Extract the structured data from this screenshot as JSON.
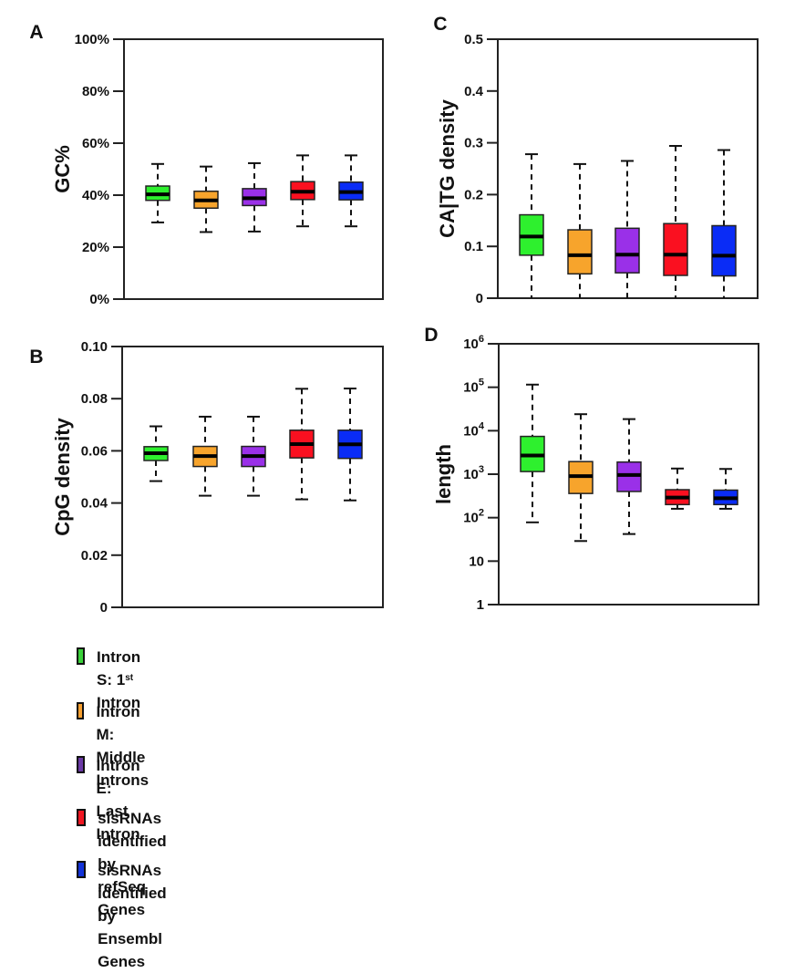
{
  "figure": {
    "legend": [
      {
        "label": "Intron S: 1st Intron",
        "label_main": "Intron S: 1",
        "label_sup": "st",
        "label_tail": " Intron",
        "color": "#3ad13a"
      },
      {
        "label": "Intron M: Middle Introns",
        "label_main": "Intron M: Middle Introns",
        "color": "#f7a030"
      },
      {
        "label": "Intron E: Last Intron",
        "label_main": "Intron E: Last Intron",
        "color": "#6b3aa6"
      },
      {
        "label": "sisRNAs identified by refSeq Genes",
        "label_main": "sisRNAs identified by",
        "label_line2": "refSeq Genes",
        "color": "#f01622"
      },
      {
        "label": "sisRNAs identified by Ensembl Genes",
        "label_main": "sisRNAs identified by",
        "label_line2": "Ensembl Genes",
        "color": "#1232d8"
      }
    ]
  },
  "chart_data": [
    {
      "panel": "A",
      "type": "boxplot",
      "ylabel": "GC%",
      "ylim": [
        0,
        100
      ],
      "yscale": "linear",
      "yticks": [
        0,
        20,
        40,
        60,
        80,
        100
      ],
      "ytick_labels": [
        "0%",
        "20%",
        "40%",
        "60%",
        "80%",
        "100%"
      ],
      "categories": [
        "Intron S",
        "Intron M",
        "Intron E",
        "sisRNA refSeq",
        "sisRNA Ensembl"
      ],
      "colors": [
        "#2ef02e",
        "#f7a42c",
        "#9a30e8",
        "#fa1020",
        "#0a2cf6"
      ],
      "boxes": [
        {
          "whisker_low": 29.5,
          "q1": 38,
          "median": 40.3,
          "q3": 43.5,
          "whisker_high": 52
        },
        {
          "whisker_low": 25.8,
          "q1": 35,
          "median": 38,
          "q3": 41.5,
          "whisker_high": 51
        },
        {
          "whisker_low": 26,
          "q1": 36,
          "median": 38.8,
          "q3": 42.5,
          "whisker_high": 52.3
        },
        {
          "whisker_low": 28,
          "q1": 38.3,
          "median": 41.3,
          "q3": 45.2,
          "whisker_high": 55.3
        },
        {
          "whisker_low": 28,
          "q1": 38.2,
          "median": 41.2,
          "q3": 45,
          "whisker_high": 55.3
        }
      ]
    },
    {
      "panel": "B",
      "type": "boxplot",
      "ylabel": "CpG density",
      "ylim": [
        0,
        0.1
      ],
      "yscale": "linear",
      "yticks": [
        0,
        0.02,
        0.04,
        0.06,
        0.08,
        0.1
      ],
      "ytick_labels": [
        "0",
        "0.02",
        "0.04",
        "0.06",
        "0.08",
        "0.10"
      ],
      "categories": [
        "Intron S",
        "Intron M",
        "Intron E",
        "sisRNA refSeq",
        "sisRNA Ensembl"
      ],
      "colors": [
        "#2ef02e",
        "#f7a42c",
        "#9a30e8",
        "#fa1020",
        "#0a2cf6"
      ],
      "boxes": [
        {
          "whisker_low": 0.0484,
          "q1": 0.0563,
          "median": 0.0591,
          "q3": 0.0616,
          "whisker_high": 0.0694
        },
        {
          "whisker_low": 0.0428,
          "q1": 0.054,
          "median": 0.058,
          "q3": 0.0617,
          "whisker_high": 0.0731
        },
        {
          "whisker_low": 0.0428,
          "q1": 0.054,
          "median": 0.058,
          "q3": 0.0617,
          "whisker_high": 0.0731
        },
        {
          "whisker_low": 0.0414,
          "q1": 0.0573,
          "median": 0.0626,
          "q3": 0.0679,
          "whisker_high": 0.0838
        },
        {
          "whisker_low": 0.041,
          "q1": 0.0571,
          "median": 0.0625,
          "q3": 0.0679,
          "whisker_high": 0.0839
        }
      ]
    },
    {
      "panel": "C",
      "type": "boxplot",
      "ylabel": "CA|TG density",
      "ylim": [
        0,
        0.5
      ],
      "yscale": "linear",
      "yticks": [
        0,
        0.1,
        0.2,
        0.3,
        0.4,
        0.5
      ],
      "ytick_labels": [
        "0",
        "0.1",
        "0.2",
        "0.3",
        "0.4",
        "0.5"
      ],
      "categories": [
        "Intron S",
        "Intron M",
        "Intron E",
        "sisRNA refSeq",
        "sisRNA Ensembl"
      ],
      "colors": [
        "#2ef02e",
        "#f7a42c",
        "#9a30e8",
        "#fa1020",
        "#0a2cf6"
      ],
      "boxes": [
        {
          "whisker_low": 0,
          "q1": 0.083,
          "median": 0.119,
          "q3": 0.161,
          "whisker_high": 0.278
        },
        {
          "whisker_low": 0,
          "q1": 0.047,
          "median": 0.083,
          "q3": 0.132,
          "whisker_high": 0.259
        },
        {
          "whisker_low": 0,
          "q1": 0.049,
          "median": 0.084,
          "q3": 0.135,
          "whisker_high": 0.265
        },
        {
          "whisker_low": 0,
          "q1": 0.044,
          "median": 0.084,
          "q3": 0.144,
          "whisker_high": 0.294
        },
        {
          "whisker_low": 0,
          "q1": 0.043,
          "median": 0.082,
          "q3": 0.14,
          "whisker_high": 0.286
        }
      ]
    },
    {
      "panel": "D",
      "type": "boxplot",
      "ylabel": "length",
      "ylim": [
        1,
        1000000
      ],
      "yscale": "log",
      "yticks": [
        1,
        10,
        100,
        1000,
        10000,
        100000,
        1000000
      ],
      "ytick_labels": [
        {
          "base": "1",
          "exp": ""
        },
        {
          "base": "10",
          "exp": ""
        },
        {
          "base": "10",
          "exp": "2"
        },
        {
          "base": "10",
          "exp": "3"
        },
        {
          "base": "10",
          "exp": "4"
        },
        {
          "base": "10",
          "exp": "5"
        },
        {
          "base": "10",
          "exp": "6"
        }
      ],
      "categories": [
        "Intron S",
        "Intron M",
        "Intron E",
        "sisRNA refSeq",
        "sisRNA Ensembl"
      ],
      "colors": [
        "#2ef02e",
        "#f7a42c",
        "#9a30e8",
        "#fa1020",
        "#0a2cf6"
      ],
      "boxes": [
        {
          "whisker_low": 78,
          "q1": 1150,
          "median": 2700,
          "q3": 7400,
          "whisker_high": 115000
        },
        {
          "whisker_low": 29,
          "q1": 360,
          "median": 900,
          "q3": 1950,
          "whisker_high": 24000
        },
        {
          "whisker_low": 42,
          "q1": 400,
          "median": 960,
          "q3": 1900,
          "whisker_high": 18500
        },
        {
          "whisker_low": 160,
          "q1": 200,
          "median": 290,
          "q3": 440,
          "whisker_high": 1350
        },
        {
          "whisker_low": 160,
          "q1": 200,
          "median": 280,
          "q3": 430,
          "whisker_high": 1320
        }
      ]
    }
  ]
}
